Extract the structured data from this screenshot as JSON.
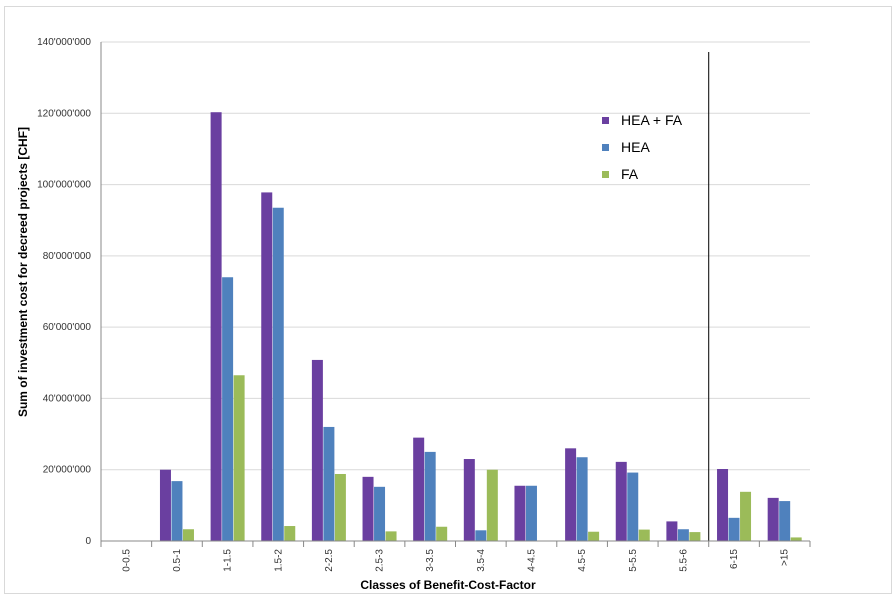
{
  "chart_data": {
    "type": "bar",
    "title": "",
    "xlabel": "Classes of Benefit-Cost-Factor",
    "ylabel": "Sum of investment cost for decreed projects [CHF]",
    "ylim": [
      0,
      140000000
    ],
    "yticks": [
      0,
      20000000,
      40000000,
      60000000,
      80000000,
      100000000,
      120000000,
      140000000
    ],
    "ytick_labels": [
      "0",
      "20'000'000",
      "40'000'000",
      "60'000'000",
      "80'000'000",
      "100'000'000",
      "120'000'000",
      "140'000'000"
    ],
    "grid": true,
    "legend_position": "top-right",
    "categories": [
      "0-0.5",
      "0.5-1",
      "1-1.5",
      "1.5-2",
      "2-2.5",
      "2.5-3",
      "3-3.5",
      "3.5-4",
      "4-4.5",
      "4.5-5",
      "5-5.5",
      "5.5-6",
      "6-15",
      ">15"
    ],
    "series": [
      {
        "name": "HEA + FA",
        "color": "#6a3fa0",
        "values": [
          0,
          20000000,
          120300000,
          97800000,
          50800000,
          18000000,
          29000000,
          23000000,
          15500000,
          26000000,
          22200000,
          5500000,
          20200000,
          12100000
        ]
      },
      {
        "name": "HEA",
        "color": "#4f81bd",
        "values": [
          0,
          16800000,
          74000000,
          93500000,
          32000000,
          15200000,
          25000000,
          3000000,
          15500000,
          23500000,
          19200000,
          3300000,
          6500000,
          11200000
        ]
      },
      {
        "name": "FA",
        "color": "#9bbb59",
        "values": [
          0,
          3300000,
          46500000,
          4200000,
          18800000,
          2700000,
          4000000,
          20000000,
          0,
          2600000,
          3200000,
          2500000,
          13800000,
          1000000
        ]
      }
    ],
    "divider_after_category": "5.5-6"
  }
}
